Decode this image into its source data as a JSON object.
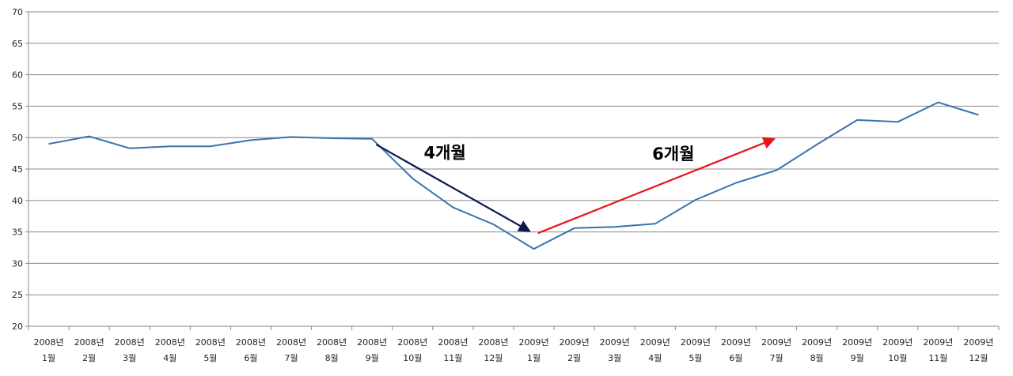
{
  "chart_data": {
    "type": "line",
    "title": "",
    "xlabel": "",
    "ylabel": "",
    "ylim": [
      20,
      70
    ],
    "ytick_step": 5,
    "grid": true,
    "categories": [
      [
        "2008년",
        "1월"
      ],
      [
        "2008년",
        "2월"
      ],
      [
        "2008년",
        "3월"
      ],
      [
        "2008년",
        "4월"
      ],
      [
        "2008년",
        "5월"
      ],
      [
        "2008년",
        "6월"
      ],
      [
        "2008년",
        "7월"
      ],
      [
        "2008년",
        "8월"
      ],
      [
        "2008년",
        "9월"
      ],
      [
        "2008년",
        "10월"
      ],
      [
        "2008년",
        "11월"
      ],
      [
        "2008년",
        "12월"
      ],
      [
        "2009년",
        "1월"
      ],
      [
        "2009년",
        "2월"
      ],
      [
        "2009년",
        "3월"
      ],
      [
        "2009년",
        "4월"
      ],
      [
        "2009년",
        "5월"
      ],
      [
        "2009년",
        "6월"
      ],
      [
        "2009년",
        "7월"
      ],
      [
        "2009년",
        "8월"
      ],
      [
        "2009년",
        "9월"
      ],
      [
        "2009년",
        "10월"
      ],
      [
        "2009년",
        "11월"
      ],
      [
        "2009년",
        "12월"
      ]
    ],
    "series": [
      {
        "color": "#3a73ad",
        "values": [
          49.0,
          50.2,
          48.3,
          48.6,
          48.6,
          49.6,
          50.1,
          49.9,
          49.8,
          43.5,
          38.9,
          36.2,
          32.3,
          35.6,
          35.8,
          36.3,
          40.1,
          42.8,
          44.8,
          48.9,
          52.8,
          52.5,
          55.6,
          53.6
        ]
      }
    ],
    "annotations": [
      {
        "text": "4개월",
        "color": "#0d1a4f",
        "from": {
          "x": 8.1,
          "y": 48.9
        },
        "to": {
          "x": 11.9,
          "y": 35.1
        },
        "label_at": {
          "x": 9.8,
          "y": 46.7
        }
      },
      {
        "text": "6개월",
        "color": "#e8141c",
        "from": {
          "x": 12.1,
          "y": 34.8
        },
        "to": {
          "x": 17.95,
          "y": 49.8
        },
        "label_at": {
          "x": 15.45,
          "y": 46.5
        }
      }
    ]
  }
}
